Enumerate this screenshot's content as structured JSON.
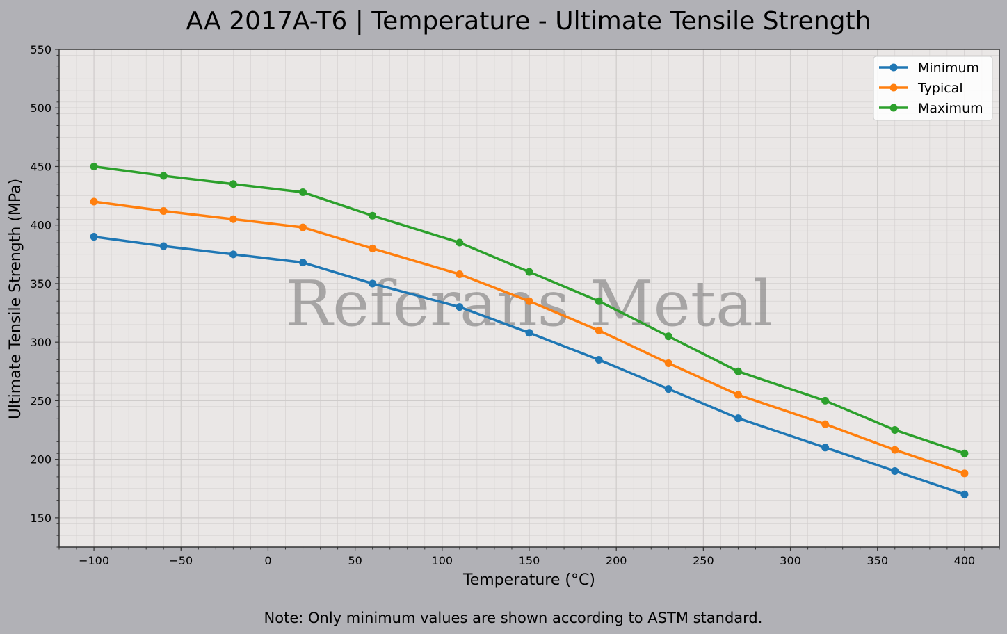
{
  "chart_data": {
    "type": "line",
    "title": "AA 2017A-T6 | Temperature - Ultimate Tensile Strength",
    "xlabel": "Temperature (°C)",
    "ylabel": "Ultimate Tensile Strength (MPa)",
    "xlim": [
      -120,
      420
    ],
    "ylim": [
      125,
      550
    ],
    "xticks": [
      -100,
      -50,
      0,
      50,
      100,
      150,
      200,
      250,
      300,
      350,
      400
    ],
    "xtick_labels": [
      "−100",
      "−50",
      "0",
      "50",
      "100",
      "150",
      "200",
      "250",
      "300",
      "350",
      "400"
    ],
    "yticks": [
      150,
      200,
      250,
      300,
      350,
      400,
      450,
      500,
      550
    ],
    "ytick_labels": [
      "150",
      "200",
      "250",
      "300",
      "350",
      "400",
      "450",
      "500",
      "550"
    ],
    "grid": true,
    "legend_position": "top-right",
    "x": [
      -100,
      -60,
      -20,
      20,
      60,
      110,
      150,
      190,
      230,
      270,
      320,
      360,
      400
    ],
    "series": [
      {
        "name": "Minimum",
        "color": "#1f77b4",
        "values": [
          390,
          382,
          375,
          368,
          350,
          330,
          308,
          285,
          260,
          235,
          210,
          190,
          170
        ]
      },
      {
        "name": "Typical",
        "color": "#ff7f0e",
        "values": [
          420,
          412,
          405,
          398,
          380,
          358,
          335,
          310,
          282,
          255,
          230,
          208,
          188
        ]
      },
      {
        "name": "Maximum",
        "color": "#2ca02c",
        "values": [
          450,
          442,
          435,
          428,
          408,
          385,
          360,
          335,
          305,
          275,
          250,
          225,
          205
        ]
      }
    ],
    "watermark": "Referans Metal",
    "note": "Note: Only minimum values are shown according to ASTM standard."
  },
  "colors": {
    "figure_background": "#b1b1b6",
    "plot_background": "#eae7e6"
  }
}
